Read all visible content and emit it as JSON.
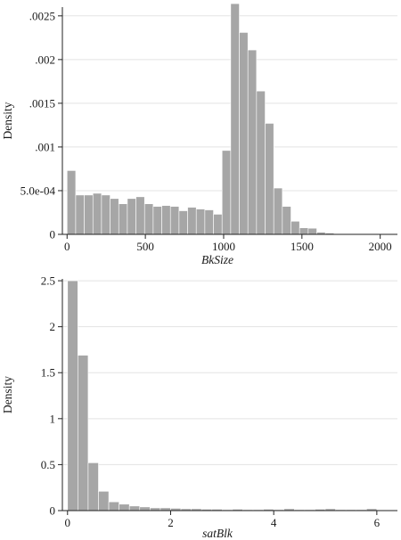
{
  "chart_data": [
    {
      "type": "bar",
      "subtype": "histogram",
      "xlabel": "BkSize",
      "ylabel": "Density",
      "xlim": [
        -30,
        2110
      ],
      "ylim": [
        0,
        0.0026
      ],
      "xticks": [
        0,
        500,
        1000,
        1500,
        2000
      ],
      "yticks": [
        0,
        0.0005,
        0.001,
        0.0015,
        0.002,
        0.0025
      ],
      "ytick_labels": [
        "0",
        "5.0e-04",
        ".001",
        ".0015",
        ".002",
        ".0025"
      ],
      "grid": "horizontal",
      "legend": "none",
      "bin_width": 55,
      "bin_start": 0,
      "values": [
        0.00073,
        0.00045,
        0.00045,
        0.00047,
        0.00045,
        0.00041,
        0.00035,
        0.00041,
        0.00043,
        0.00035,
        0.00032,
        0.00033,
        0.00032,
        0.00027,
        0.00031,
        0.00029,
        0.00028,
        0.00023,
        0.00096,
        0.00264,
        0.00231,
        0.00211,
        0.00164,
        0.00127,
        0.00053,
        0.00032,
        0.00015,
        7.5e-05,
        7e-05,
        2.5e-05,
        1.5e-05,
        5e-06,
        3e-06,
        3e-06,
        3e-06,
        5e-06
      ]
    },
    {
      "type": "bar",
      "subtype": "histogram",
      "xlabel": "satBlk",
      "ylabel": "Density",
      "xlim": [
        -0.1,
        6.4
      ],
      "ylim": [
        0,
        2.52
      ],
      "xticks": [
        0,
        2,
        4,
        6
      ],
      "yticks": [
        0,
        0.5,
        1,
        1.5,
        2,
        2.5
      ],
      "ytick_labels": [
        "0",
        "0.5",
        "1",
        "1.5",
        "2",
        "2.5"
      ],
      "grid": "horizontal",
      "legend": "none",
      "bin_width": 0.2,
      "bin_start": 0,
      "values": [
        2.5,
        1.69,
        0.52,
        0.21,
        0.095,
        0.07,
        0.05,
        0.04,
        0.03,
        0.03,
        0.025,
        0.02,
        0.02,
        0.015,
        0.015,
        0.01,
        0.015,
        0.01,
        0.01,
        0.015,
        0.01,
        0.02,
        0.01,
        0.01,
        0.015,
        0.02,
        0.01,
        0.01,
        0.01,
        0.02,
        0.005
      ]
    }
  ]
}
